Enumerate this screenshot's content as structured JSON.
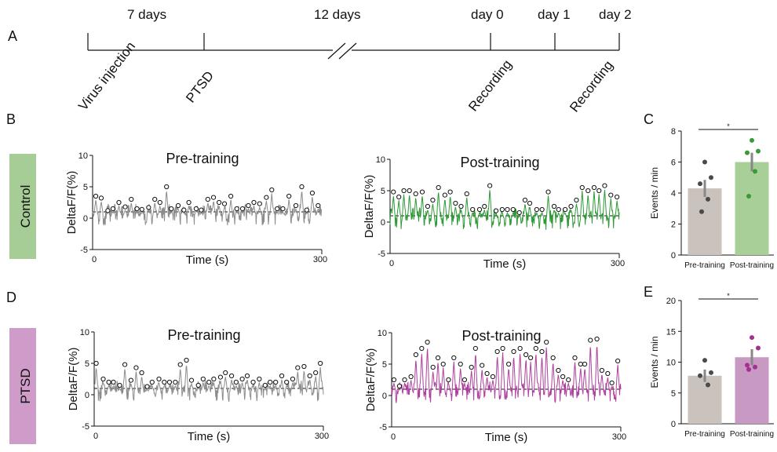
{
  "timeline": {
    "panel": "A",
    "intervals": [
      "7 days",
      "12 days"
    ],
    "days": [
      "day 0",
      "day 1",
      "day 2"
    ],
    "events": [
      "Virus injection",
      "PTSD",
      "Recording",
      "Recording"
    ]
  },
  "panels": {
    "B": "B",
    "C": "C",
    "D": "D",
    "E": "E"
  },
  "groups": {
    "control": {
      "label": "Control",
      "color": "#a6cd96"
    },
    "ptsd": {
      "label": "PTSD",
      "color": "#cf9bc9"
    }
  },
  "colors": {
    "pre_trace": "#8c8c8c",
    "control_post": "#2e9a36",
    "ptsd_post": "#b0409e",
    "pre_bar": "#c9c2bd",
    "control_bar": "#a8cf98",
    "ptsd_bar": "#c89ac3",
    "control_dot": "#3a9a3a",
    "ptsd_dot": "#a3308e",
    "pre_dot": "#4a4a4a"
  },
  "chart_data": [
    {
      "id": "control_pre",
      "type": "line",
      "title": "Pre-training",
      "xlabel": "Time (s)",
      "ylabel": "DeltaF/F(%)",
      "xlim": [
        0,
        300
      ],
      "ylim": [
        -5,
        10
      ],
      "xticks": [
        "0",
        "300"
      ],
      "yticks": [
        "-5",
        "0",
        "5",
        "10"
      ],
      "baseline": 1,
      "events": [
        3.5,
        3.2,
        1.2,
        1.5,
        2.5,
        1.8,
        3.0,
        1.5,
        1.4,
        1.7,
        3.0,
        2.5,
        5.0,
        1.5,
        2.0,
        1.3,
        2.5,
        1.5,
        1.3,
        3.0,
        3.3,
        2.5,
        2.3,
        3.5,
        1.5,
        1.5,
        2.0,
        2.5,
        2.3,
        3.3,
        4.5,
        1.5,
        1.5,
        3.5,
        2.0,
        5.0,
        1.3,
        4.0,
        2.0
      ]
    },
    {
      "id": "control_post",
      "type": "line",
      "title": "Post-training",
      "xlabel": "Time (s)",
      "ylabel": "DeltaF/F(%)",
      "xlim": [
        0,
        300
      ],
      "ylim": [
        -5,
        10
      ],
      "xticks": [
        "0",
        "300"
      ],
      "yticks": [
        "-5",
        "0",
        "5",
        "10"
      ],
      "baseline": 1,
      "events": [
        4.8,
        4.0,
        5.0,
        5.0,
        4.5,
        4.8,
        2.5,
        3.5,
        5.5,
        4.3,
        4.8,
        3.0,
        2.5,
        4.5,
        2.0,
        2.0,
        2.5,
        5.8,
        1.8,
        2.0,
        2.0,
        2.0,
        1.5,
        3.5,
        3.0,
        2.0,
        2.0,
        4.8,
        2.5,
        2.0,
        2.0,
        2.5,
        3.5,
        5.5,
        5.0,
        5.5,
        5.0,
        5.8,
        4.3,
        4.0
      ]
    },
    {
      "id": "control_bar",
      "type": "bar",
      "panel": "C",
      "ylabel": "Events / min",
      "categories": [
        "Pre-training",
        "Post-training"
      ],
      "values": [
        4.3,
        6.0
      ],
      "sem": [
        0.55,
        0.6
      ],
      "points": [
        [
          6.0,
          5.0,
          4.6,
          3.6,
          2.8
        ],
        [
          7.4,
          6.7,
          6.6,
          5.4,
          3.8
        ]
      ],
      "ylim": [
        0,
        8
      ],
      "yticks": [
        "0",
        "2",
        "4",
        "6",
        "8"
      ],
      "significance": "*"
    },
    {
      "id": "ptsd_pre",
      "type": "line",
      "title": "Pre-training",
      "xlabel": "Time (s)",
      "ylabel": "DeltaF/F(%)",
      "xlim": [
        0,
        300
      ],
      "ylim": [
        -5,
        10
      ],
      "xticks": [
        "0",
        "300"
      ],
      "yticks": [
        "-5",
        "0",
        "5",
        "10"
      ],
      "baseline": 1,
      "events": [
        5.0,
        2.5,
        2.0,
        2.0,
        1.5,
        4.8,
        2.3,
        4.3,
        3.5,
        1.3,
        2.0,
        2.5,
        2.0,
        2.0,
        2.0,
        4.8,
        5.5,
        2.3,
        1.5,
        2.5,
        2.0,
        2.5,
        2.8,
        3.5,
        3.0,
        2.0,
        2.5,
        3.0,
        2.0,
        2.5,
        1.5,
        2.0,
        2.0,
        3.0,
        2.0,
        2.5,
        4.3,
        4.5,
        3.0,
        3.5,
        5.0
      ]
    },
    {
      "id": "ptsd_post",
      "type": "line",
      "title": "Post-training",
      "xlabel": "Time (s)",
      "ylabel": "DeltaF/F(%)",
      "xlim": [
        0,
        300
      ],
      "ylim": [
        -5,
        10
      ],
      "xticks": [
        "0",
        "300"
      ],
      "yticks": [
        "-5",
        "0",
        "5",
        "10"
      ],
      "baseline": 1,
      "events": [
        2.5,
        1.5,
        2.5,
        3.0,
        6.5,
        7.5,
        8.5,
        4.5,
        6.0,
        5.0,
        2.5,
        6.0,
        5.0,
        2.5,
        4.5,
        7.5,
        4.8,
        3.5,
        3.0,
        7.0,
        7.5,
        5.0,
        7.0,
        7.5,
        6.5,
        6.0,
        7.5,
        7.0,
        8.5,
        6.0,
        4.0,
        3.0,
        2.5,
        6.0,
        5.0,
        5.0,
        8.8,
        9.0,
        4.0,
        3.5,
        2.0,
        5.5
      ]
    },
    {
      "id": "ptsd_bar",
      "type": "bar",
      "panel": "E",
      "ylabel": "Events / min",
      "categories": [
        "Pre-training",
        "Post-training"
      ],
      "values": [
        7.8,
        10.8
      ],
      "sem": [
        1.0,
        1.3
      ],
      "points": [
        [
          10.3,
          8.3,
          7.8,
          6.3
        ],
        [
          14.0,
          12.3,
          9.5,
          9.2,
          8.8
        ]
      ],
      "ylim": [
        0,
        20
      ],
      "yticks": [
        "0",
        "5",
        "10",
        "15",
        "20"
      ],
      "significance": "*"
    }
  ]
}
